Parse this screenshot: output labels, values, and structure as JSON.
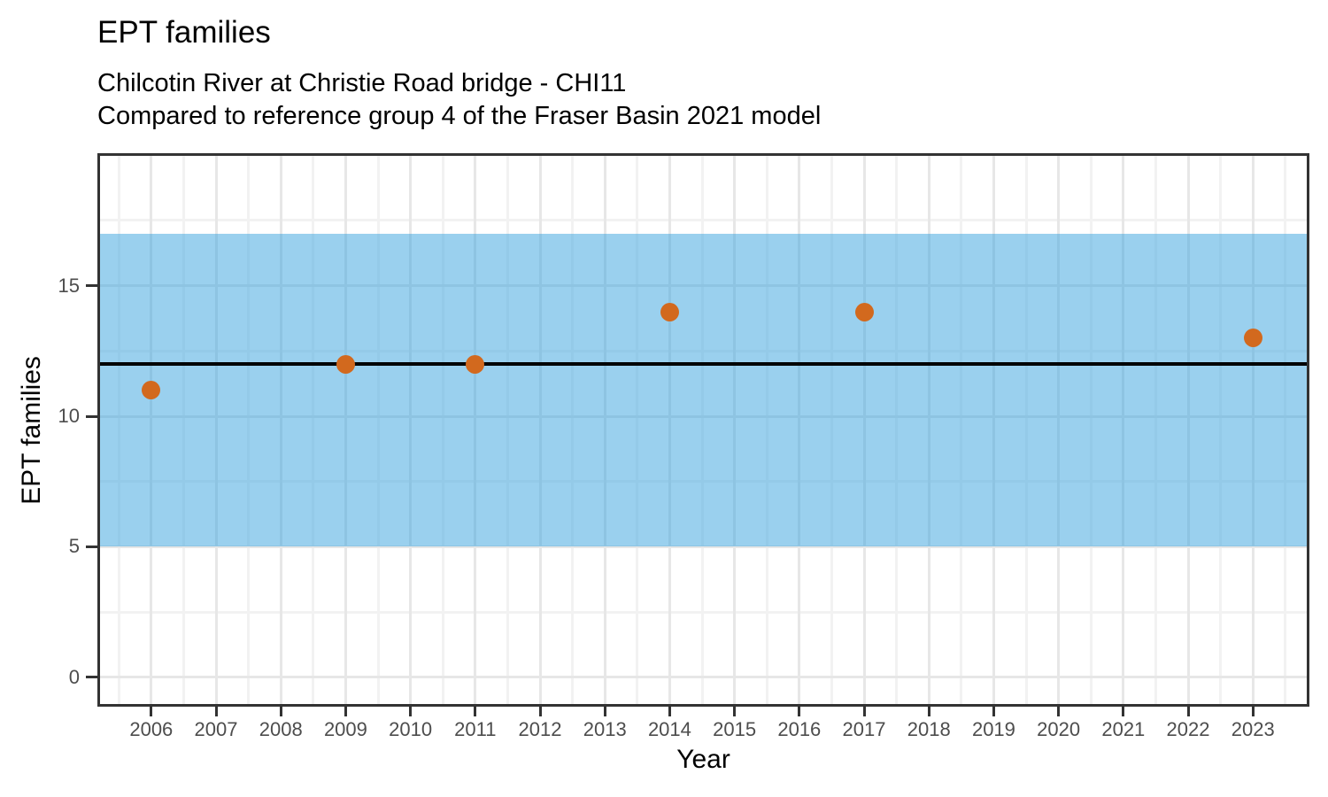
{
  "chart_data": {
    "type": "scatter",
    "title": "EPT families",
    "subtitle": [
      "Chilcotin River at Christie Road bridge - CHI11",
      "Compared to reference group 4 of the Fraser Basin 2021 model"
    ],
    "xlabel": "Year",
    "ylabel": "EPT families",
    "xlim": [
      2005.21,
      2023.83
    ],
    "ylim": [
      -1.02,
      19.97
    ],
    "x_ticks": [
      2006,
      2007,
      2008,
      2009,
      2010,
      2011,
      2012,
      2013,
      2014,
      2015,
      2016,
      2017,
      2018,
      2019,
      2020,
      2021,
      2022,
      2023
    ],
    "y_ticks": [
      0,
      5,
      10,
      15
    ],
    "grid": "major and minor, both axes",
    "legend": "none",
    "reference_band": {
      "ymin": 5,
      "ymax": 17
    },
    "reference_line": {
      "y": 12
    },
    "points": [
      {
        "x": 2006,
        "y": 11
      },
      {
        "x": 2009,
        "y": 12
      },
      {
        "x": 2011,
        "y": 12
      },
      {
        "x": 2014,
        "y": 14
      },
      {
        "x": 2017,
        "y": 14
      },
      {
        "x": 2023,
        "y": 13
      }
    ]
  },
  "colors": {
    "band": "rgba(53,161,221,0.5)",
    "reference_line": "#000000",
    "point": "#D2691E",
    "grid_major": "#E7E7E7",
    "grid_minor": "#F2F2F2",
    "panel_border": "#333333",
    "tick_mark": "#333333",
    "axis_text": "#4D4D4D",
    "title_text": "#000000",
    "background": "#FFFFFF"
  }
}
